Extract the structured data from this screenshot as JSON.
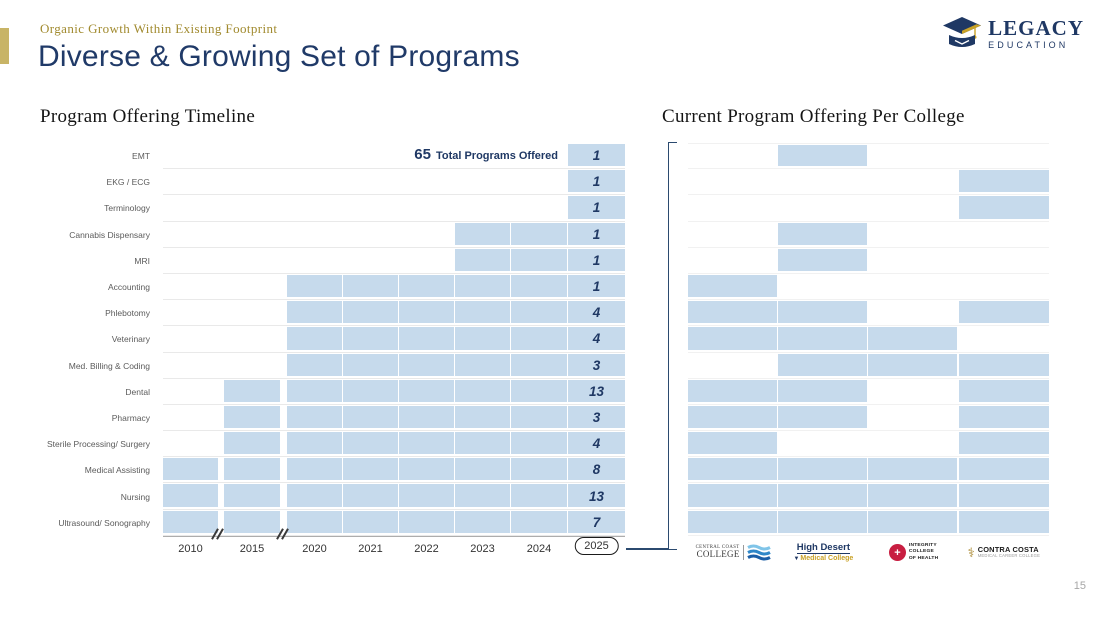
{
  "slide": {
    "eyebrow": "Organic Growth Within Existing Footprint",
    "title": "Diverse & Growing Set of Programs",
    "page_number": "15"
  },
  "brand": {
    "logo_line1": "LEGACY",
    "logo_line2": "EDUCATION",
    "navy": "#1F3864",
    "gold": "#C8B466",
    "bar_blue": "#C6DAEC"
  },
  "chart_data": [
    {
      "type": "bar",
      "title": "Program Offering Timeline",
      "annotation_value": "65",
      "annotation_label": "Total Programs Offered",
      "total_programs": 65,
      "years": [
        "2010",
        "2015",
        "2020",
        "2021",
        "2022",
        "2023",
        "2024",
        "2025"
      ],
      "highlighted_year": "2025",
      "axis_break_between": [
        [
          "2010",
          "2015"
        ],
        [
          "2015",
          "2020"
        ]
      ],
      "bar_color": "#C6DAEC",
      "rows": [
        {
          "program": "EMT",
          "start_year": "2025",
          "count": "1"
        },
        {
          "program": "EKG / ECG",
          "start_year": "2025",
          "count": "1"
        },
        {
          "program": "Terminology",
          "start_year": "2025",
          "count": "1"
        },
        {
          "program": "Cannabis Dispensary",
          "start_year": "2023",
          "count": "1"
        },
        {
          "program": "MRI",
          "start_year": "2023",
          "count": "1"
        },
        {
          "program": "Accounting",
          "start_year": "2020",
          "count": "1"
        },
        {
          "program": "Phlebotomy",
          "start_year": "2020",
          "count": "4"
        },
        {
          "program": "Veterinary",
          "start_year": "2020",
          "count": "4"
        },
        {
          "program": "Med. Billing & Coding",
          "start_year": "2020",
          "count": "3"
        },
        {
          "program": "Dental",
          "start_year": "2015",
          "count": "13"
        },
        {
          "program": "Pharmacy",
          "start_year": "2015",
          "count": "3"
        },
        {
          "program": "Sterile Processing/ Surgery",
          "start_year": "2015",
          "count": "4"
        },
        {
          "program": "Medical Assisting",
          "start_year": "2010",
          "count": "8"
        },
        {
          "program": "Nursing",
          "start_year": "2010",
          "count": "13"
        },
        {
          "program": "Ultrasound/ Sonography",
          "start_year": "2010",
          "count": "7"
        }
      ]
    },
    {
      "type": "heatmap",
      "title": "Current Program Offering Per College",
      "colleges": [
        "Central Coast College",
        "High Desert Medical College",
        "Integrity College of Health",
        "Contra Costa Medical Career College"
      ],
      "cell_color": "#C6DAEC",
      "rows": [
        {
          "program": "EMT",
          "offered": [
            0,
            1,
            0,
            0
          ]
        },
        {
          "program": "EKG / ECG",
          "offered": [
            0,
            0,
            0,
            1
          ]
        },
        {
          "program": "Terminology",
          "offered": [
            0,
            0,
            0,
            1
          ]
        },
        {
          "program": "Cannabis Dispensary",
          "offered": [
            0,
            1,
            0,
            0
          ]
        },
        {
          "program": "MRI",
          "offered": [
            0,
            1,
            0,
            0
          ]
        },
        {
          "program": "Accounting",
          "offered": [
            1,
            0,
            0,
            0
          ]
        },
        {
          "program": "Phlebotomy",
          "offered": [
            1,
            1,
            0,
            1
          ]
        },
        {
          "program": "Veterinary",
          "offered": [
            1,
            1,
            1,
            0
          ]
        },
        {
          "program": "Med. Billing & Coding",
          "offered": [
            0,
            1,
            1,
            1
          ]
        },
        {
          "program": "Dental",
          "offered": [
            1,
            1,
            0,
            1
          ]
        },
        {
          "program": "Pharmacy",
          "offered": [
            1,
            1,
            0,
            1
          ]
        },
        {
          "program": "Sterile Processing/ Surgery",
          "offered": [
            1,
            0,
            0,
            1
          ]
        },
        {
          "program": "Medical Assisting",
          "offered": [
            1,
            1,
            1,
            1
          ]
        },
        {
          "program": "Nursing",
          "offered": [
            1,
            1,
            1,
            1
          ]
        },
        {
          "program": "Ultrasound/ Sonography",
          "offered": [
            1,
            1,
            1,
            1
          ]
        }
      ]
    }
  ],
  "college_logos": [
    {
      "line1": "CENTRAL COAST",
      "line2": "COLLEGE"
    },
    {
      "line1": "High Desert",
      "line2": "Medical College"
    },
    {
      "lines": [
        "INTEGRITY",
        "COLLEGE",
        "OF HEALTH"
      ]
    },
    {
      "line1": "CONTRA COSTA",
      "line2": "MEDICAL CAREER COLLEGE"
    }
  ]
}
